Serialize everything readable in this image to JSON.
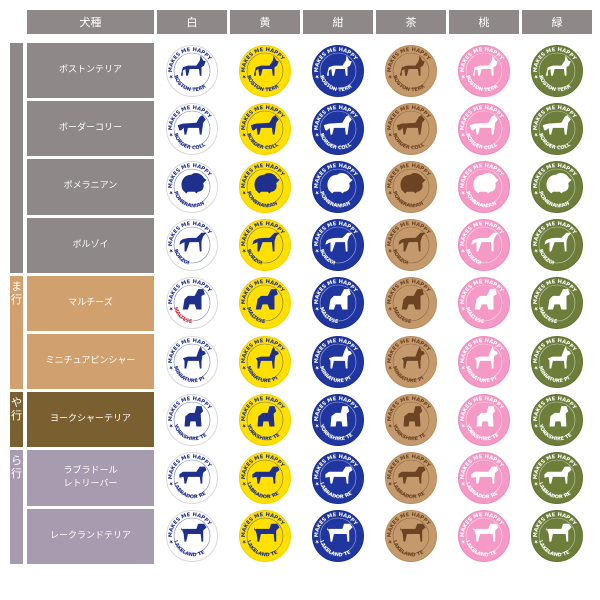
{
  "header": {
    "breed_label": "犬種",
    "colors": [
      {
        "label": "白",
        "fill": "#ffffff",
        "ring": "#d9d9d9",
        "ink": "#1f2f8c"
      },
      {
        "label": "黄",
        "fill": "#ffe000",
        "ring": "#f2d200",
        "ink": "#1f2f8c"
      },
      {
        "label": "紺",
        "fill": "#1f36a0",
        "ring": "#1a2f8f",
        "ink": "#ffffff"
      },
      {
        "label": "茶",
        "fill": "#c49a6c",
        "ring": "#b88d5f",
        "ink": "#6b4423"
      },
      {
        "label": "桃",
        "fill": "#f59ac6",
        "ring": "#ee8dbc",
        "ink": "#ffffff"
      },
      {
        "label": "緑",
        "fill": "#6c7e3a",
        "ring": "#627334",
        "ink": "#ffffff"
      }
    ]
  },
  "groups": [
    {
      "label": "",
      "color": "#8e8888"
    },
    {
      "label": "ま行",
      "color": "#d0a06e"
    },
    {
      "label": "や行",
      "color": "#7a6030"
    },
    {
      "label": "ら行",
      "color": "#a79bb0"
    }
  ],
  "rows": [
    {
      "label": "ボストンテリア",
      "group": 0,
      "badge": "BOSTON TERRIER",
      "dog": "terrier"
    },
    {
      "label": "ボーダーコリー",
      "group": 0,
      "badge": "BORDER COLLIE",
      "dog": "collie"
    },
    {
      "label": "ポメラニアン",
      "group": 0,
      "badge": "POMERANIAN",
      "dog": "pom"
    },
    {
      "label": "ボルゾイ",
      "group": 0,
      "badge": "BORZOI",
      "dog": "borzoi"
    },
    {
      "label": "マルチーズ",
      "group": 1,
      "badge": "MALTESE",
      "dog": "maltese"
    },
    {
      "label": "ミニチュアピンシャー",
      "group": 1,
      "badge": "MINIATURE PINSCHER",
      "dog": "pinscher"
    },
    {
      "label": "ヨークシャーテリア",
      "group": 2,
      "badge": "YORKSHIRE TERRIER",
      "dog": "yorkie"
    },
    {
      "label": "ラブラドール\nレトリーバー",
      "group": 3,
      "badge": "LABRADOR RETRIEVER",
      "dog": "lab"
    },
    {
      "label": "レークランドテリア",
      "group": 3,
      "badge": "LAKELAND TERRIER",
      "dog": "lakeland"
    }
  ],
  "badge_top_text": "MAKES ME HAPPY",
  "highlight_colors": {
    "maltese_badge_text": "#d8282e"
  }
}
